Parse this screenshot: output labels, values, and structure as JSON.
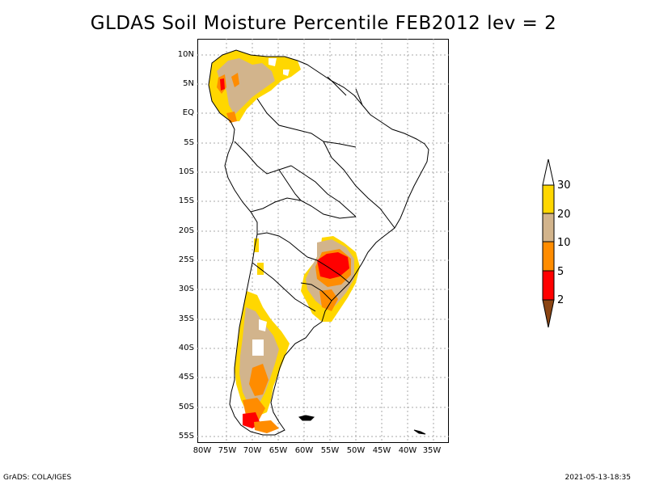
{
  "title": "GLDAS Soil Moisture Percentile FEB2012 lev = 2",
  "lat_labels": [
    "10N",
    "5N",
    "EQ",
    "5S",
    "10S",
    "15S",
    "20S",
    "25S",
    "30S",
    "35S",
    "40S",
    "45S",
    "50S",
    "55S"
  ],
  "lon_labels": [
    "80W",
    "75W",
    "70W",
    "65W",
    "60W",
    "55W",
    "50W",
    "45W",
    "40W",
    "35W"
  ],
  "colorbar": {
    "levels": [
      "30",
      "20",
      "10",
      "5",
      "2"
    ],
    "colors": {
      "above_30": "#ffffff",
      "20_30": "#ffd700",
      "10_20": "#d2b48c",
      "5_10": "#ff8c00",
      "2_5": "#ff0000",
      "below_2": "#8b4513"
    }
  },
  "footer": {
    "left": "GrADS: COLA/IGES",
    "right": "2021-05-13-18:35"
  }
}
